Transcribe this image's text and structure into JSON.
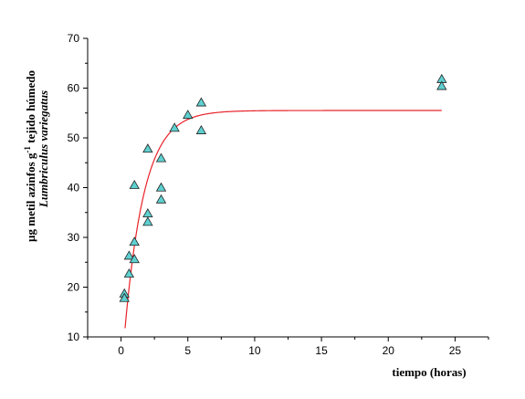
{
  "chart_data": {
    "type": "scatter",
    "xlabel": "tiempo (horas)",
    "ylabel_line1_prefix": "µg metil azinfos g",
    "ylabel_line1_sup": "-1",
    "ylabel_line1_suffix": " tejido húmedo",
    "ylabel_line2": "Lumbriculus variegatus",
    "xlim": [
      -2.5,
      27.5
    ],
    "ylim": [
      10,
      70
    ],
    "xticks": [
      0,
      5,
      10,
      15,
      20,
      25
    ],
    "yticks": [
      10,
      20,
      30,
      40,
      50,
      60,
      70
    ],
    "points": [
      {
        "x": 0.25,
        "y": 18.7
      },
      {
        "x": 0.25,
        "y": 17.8
      },
      {
        "x": 0.6,
        "y": 26.3
      },
      {
        "x": 0.6,
        "y": 22.7
      },
      {
        "x": 1.0,
        "y": 29.1
      },
      {
        "x": 1.0,
        "y": 25.6
      },
      {
        "x": 1.0,
        "y": 40.5
      },
      {
        "x": 2.0,
        "y": 47.8
      },
      {
        "x": 2.0,
        "y": 34.8
      },
      {
        "x": 2.0,
        "y": 33.1
      },
      {
        "x": 3.0,
        "y": 45.9
      },
      {
        "x": 3.0,
        "y": 40.0
      },
      {
        "x": 3.0,
        "y": 37.6
      },
      {
        "x": 4.0,
        "y": 52.0
      },
      {
        "x": 5.0,
        "y": 54.6
      },
      {
        "x": 6.0,
        "y": 57.1
      },
      {
        "x": 6.0,
        "y": 51.5
      },
      {
        "x": 24.0,
        "y": 61.8
      },
      {
        "x": 24.0,
        "y": 60.4
      }
    ],
    "fit_curve": {
      "model": "y = A*(1-exp(-k*(x-x0)))",
      "A": 55.5,
      "k": 0.68,
      "x0": -0.05,
      "x_start": 0.3,
      "x_end": 24.0
    },
    "grid": false,
    "legend": "none",
    "colors": {
      "marker_fill": "#5fd0d0",
      "marker_stroke": "#222222",
      "fit_line": "#e8232a",
      "axis": "#000000"
    }
  }
}
